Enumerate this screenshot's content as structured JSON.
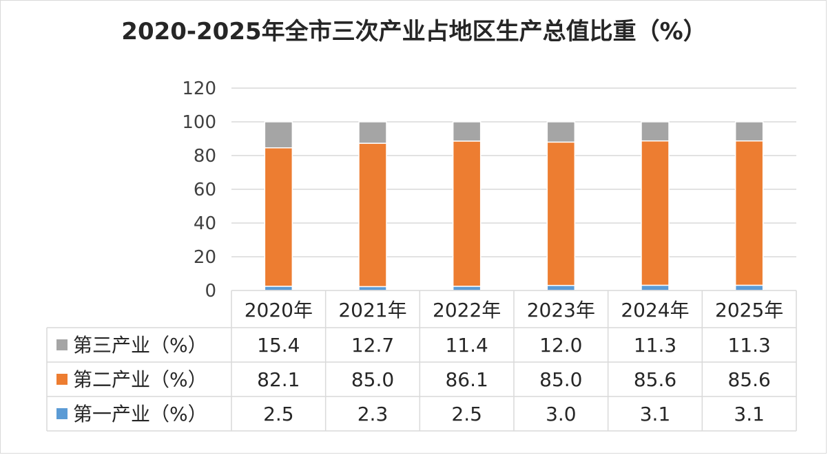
{
  "chart_data": {
    "type": "bar",
    "stacked": true,
    "title": "2020-2025年全市三次产业占地区生产总值比重（%）",
    "categories": [
      "2020年",
      "2021年",
      "2022年",
      "2023年",
      "2024年",
      "2025年"
    ],
    "ylim": [
      0,
      120
    ],
    "yticks": [
      0,
      20,
      40,
      60,
      80,
      100,
      120
    ],
    "grid": true,
    "data_table": true,
    "series": [
      {
        "name": "第一产业（%）",
        "color": "#5b9bd5",
        "values": [
          "2.5",
          "2.3",
          "2.5",
          "3.0",
          "3.1",
          "3.1"
        ]
      },
      {
        "name": "第二产业（%）",
        "color": "#ed7d31",
        "values": [
          "82.1",
          "85.0",
          "86.1",
          "85.0",
          "85.6",
          "85.6"
        ]
      },
      {
        "name": "第三产业（%）",
        "color": "#a5a5a5",
        "values": [
          "15.4",
          "12.7",
          "11.4",
          "12.0",
          "11.3",
          "11.3"
        ]
      }
    ]
  }
}
